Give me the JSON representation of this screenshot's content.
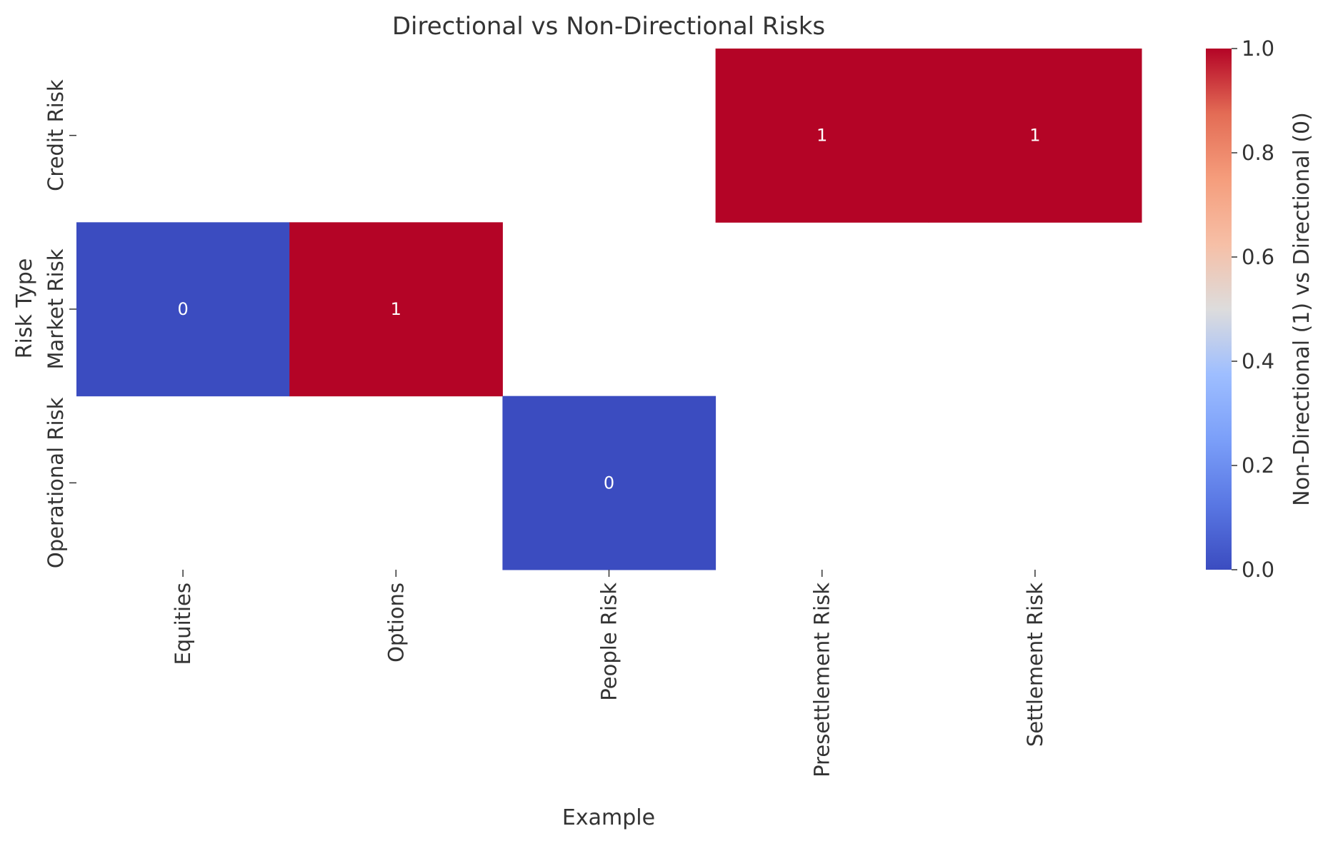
{
  "chart_data": {
    "type": "heatmap",
    "title": "Directional vs Non-Directional Risks",
    "xlabel": "Example",
    "ylabel": "Risk Type",
    "x_categories": [
      "Equities",
      "Options",
      "People Risk",
      "Presettlement Risk",
      "Settlement Risk"
    ],
    "y_categories": [
      "Credit Risk",
      "Market Risk",
      "Operational Risk"
    ],
    "values": [
      [
        null,
        null,
        null,
        1,
        1
      ],
      [
        0,
        1,
        null,
        null,
        null
      ],
      [
        null,
        null,
        0,
        null,
        null
      ]
    ],
    "annotations": true,
    "colormap": "coolwarm",
    "colors": {
      "low": "#3b4cc0",
      "high": "#b40426"
    },
    "colorbar": {
      "label": "Non-Directional (1) vs Directional (0)",
      "range": [
        0.0,
        1.0
      ],
      "ticks": [
        "0.0",
        "0.2",
        "0.4",
        "0.6",
        "0.8",
        "1.0"
      ]
    }
  }
}
